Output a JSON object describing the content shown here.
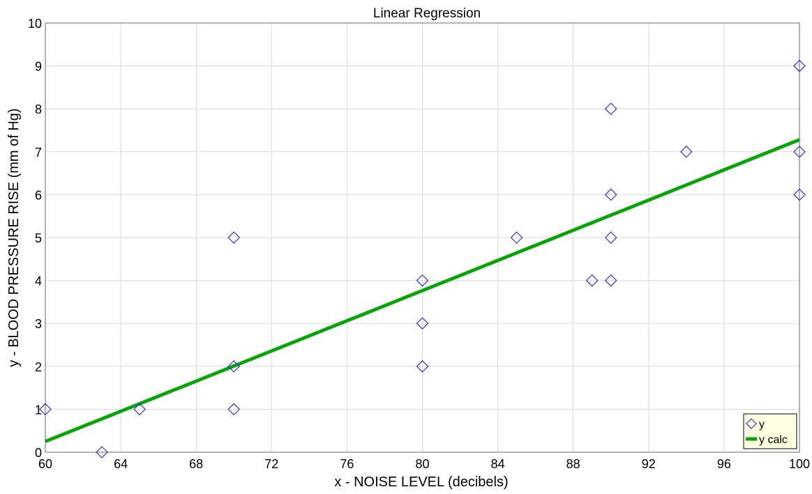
{
  "chart_data": {
    "type": "scatter",
    "title": "Linear Regression",
    "xlabel": "x - NOISE LEVEL (decibels)",
    "ylabel": "y - BLOOD PRESSURE RISE (mm of Hg)",
    "xlim": [
      60,
      100
    ],
    "ylim": [
      0,
      10
    ],
    "x_ticks": [
      60,
      64,
      68,
      72,
      76,
      80,
      84,
      88,
      92,
      96,
      100
    ],
    "y_ticks": [
      0,
      1,
      2,
      3,
      4,
      5,
      6,
      7,
      8,
      9,
      10
    ],
    "grid": true,
    "legend_position": "bottom-right",
    "series": [
      {
        "name": "y",
        "kind": "scatter",
        "marker": "diamond",
        "color": "#3333cc",
        "points": [
          [
            60,
            1
          ],
          [
            63,
            0
          ],
          [
            65,
            1
          ],
          [
            70,
            1
          ],
          [
            70,
            2
          ],
          [
            70,
            5
          ],
          [
            80,
            2
          ],
          [
            80,
            3
          ],
          [
            80,
            4
          ],
          [
            85,
            5
          ],
          [
            89,
            4
          ],
          [
            90,
            4
          ],
          [
            90,
            5
          ],
          [
            90,
            6
          ],
          [
            90,
            8
          ],
          [
            94,
            7
          ],
          [
            100,
            6
          ],
          [
            100,
            7
          ],
          [
            100,
            9
          ]
        ]
      },
      {
        "name": "y calc",
        "kind": "line",
        "color": "#0ea10e",
        "points": [
          [
            60,
            0.25
          ],
          [
            100,
            7.28
          ]
        ]
      }
    ]
  }
}
